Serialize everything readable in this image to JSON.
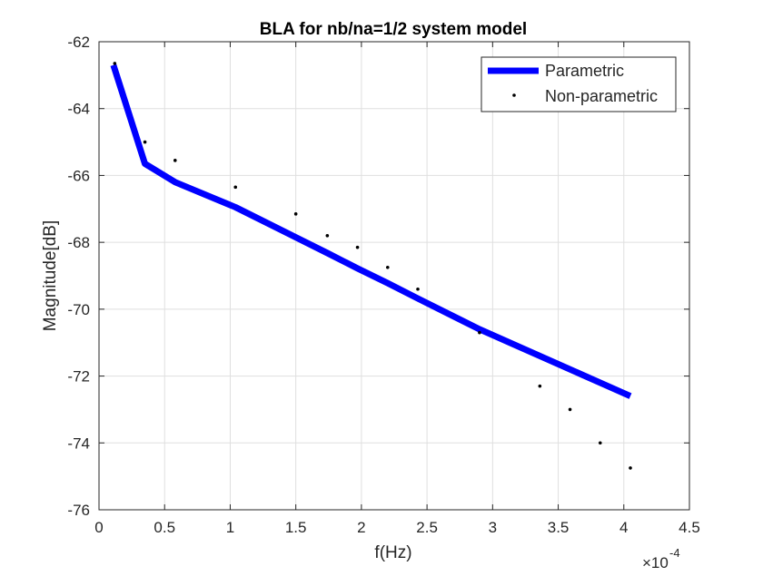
{
  "chart_data": {
    "type": "line",
    "title": "BLA for nb/na=1/2 system model",
    "xlabel": "f(Hz)",
    "ylabel": "Magnitude[dB]",
    "x_scale_label": "×10",
    "x_scale_exponent": "-4",
    "xlim": [
      0,
      4.5
    ],
    "ylim": [
      -76,
      -62
    ],
    "x_ticks": [
      0,
      0.5,
      1,
      1.5,
      2,
      2.5,
      3,
      3.5,
      4,
      4.5
    ],
    "x_tick_labels": [
      "0",
      "0.5",
      "1",
      "1.5",
      "2",
      "2.5",
      "3",
      "3.5",
      "4",
      "4.5"
    ],
    "y_ticks": [
      -76,
      -74,
      -72,
      -70,
      -68,
      -66,
      -64,
      -62
    ],
    "y_tick_labels": [
      "-76",
      "-74",
      "-72",
      "-70",
      "-68",
      "-66",
      "-64",
      "-62"
    ],
    "x_units_note": "x values are in units of 1e-4 Hz as printed on the axis",
    "grid": true,
    "legend_position": "top-right",
    "series": [
      {
        "name": "Parametric",
        "style": "line",
        "color": "#0000ff",
        "x": [
          0.11,
          0.35,
          0.58,
          1.04,
          1.5,
          1.74,
          1.97,
          2.2,
          2.43,
          2.9,
          3.36,
          3.59,
          3.82,
          4.05
        ],
        "y": [
          -62.7,
          -65.65,
          -66.2,
          -66.95,
          -67.85,
          -68.32,
          -68.78,
          -69.22,
          -69.68,
          -70.6,
          -71.4,
          -71.8,
          -72.2,
          -72.6
        ]
      },
      {
        "name": "Non-parametric",
        "style": "markers",
        "color": "#000000",
        "x": [
          0.12,
          0.35,
          0.58,
          1.04,
          1.5,
          1.74,
          1.97,
          2.2,
          2.43,
          2.9,
          3.36,
          3.59,
          3.82,
          4.05
        ],
        "y": [
          -62.65,
          -65.0,
          -65.55,
          -66.35,
          -67.15,
          -67.8,
          -68.15,
          -68.75,
          -69.4,
          -70.7,
          -72.3,
          -73.0,
          -74.0,
          -74.75
        ]
      }
    ]
  }
}
